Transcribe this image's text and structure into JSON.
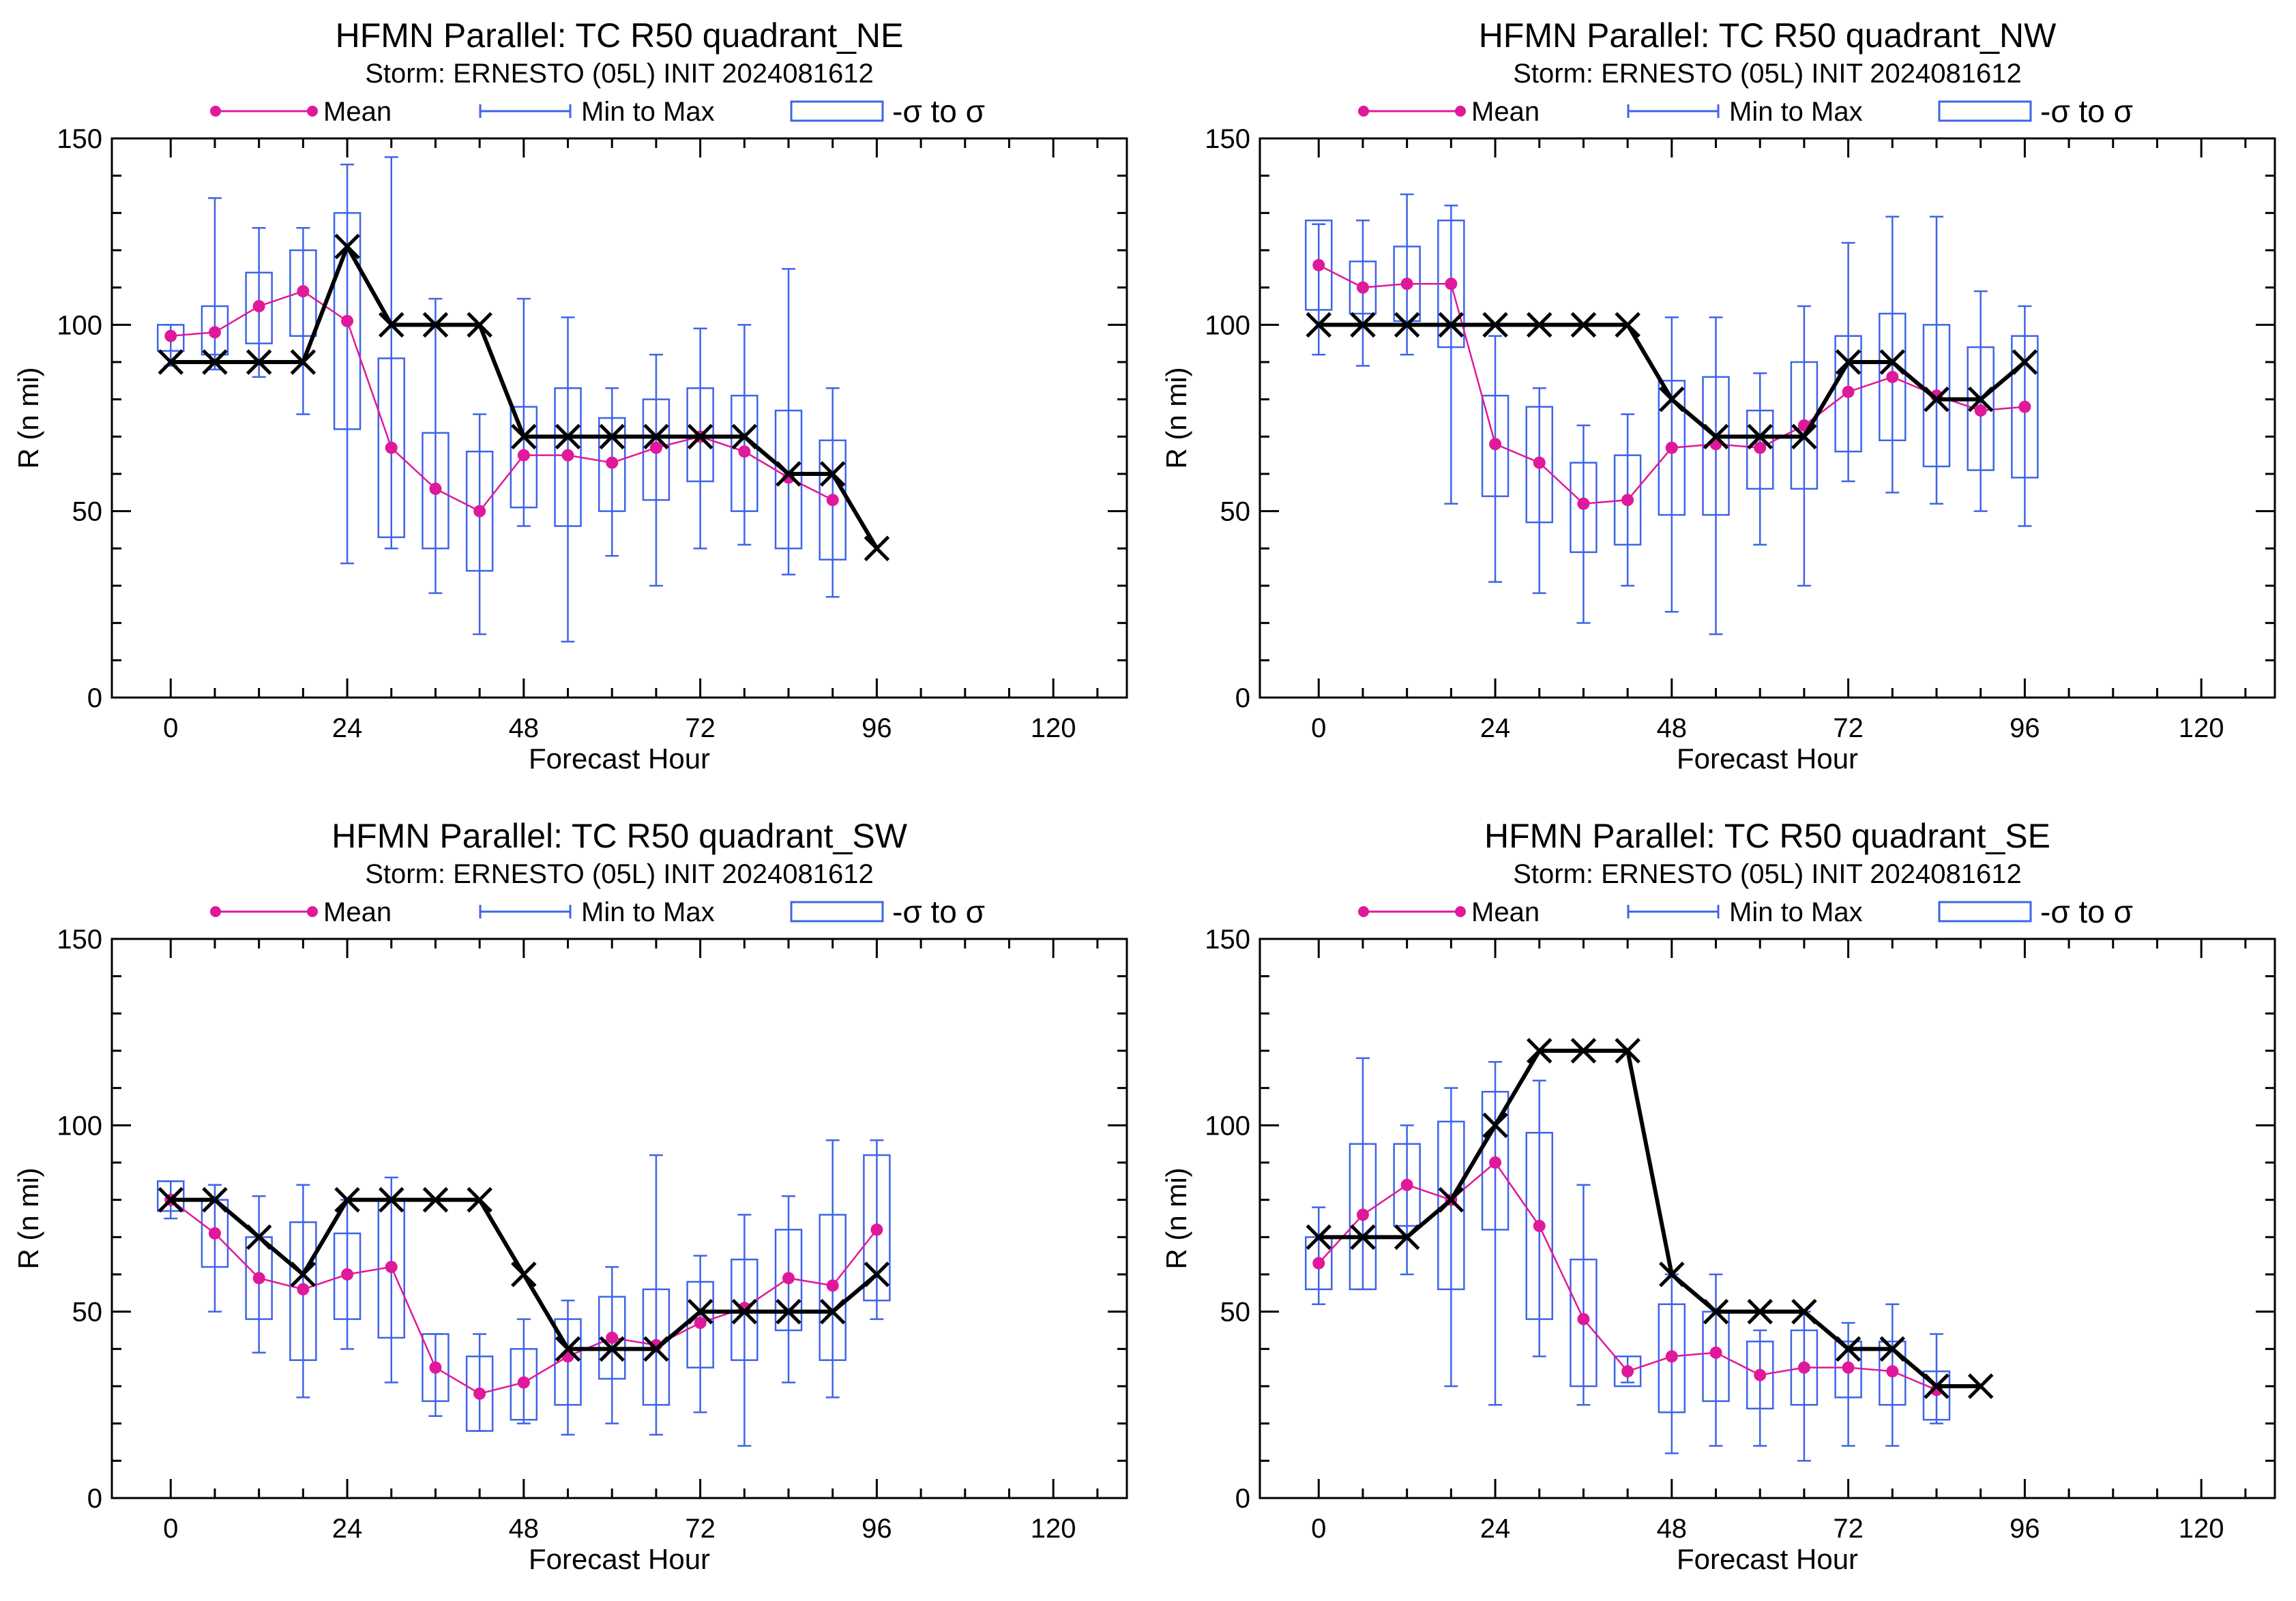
{
  "legend": {
    "mean": "Mean",
    "minmax": "Min to Max",
    "sigma": "-σ to σ"
  },
  "colors": {
    "mean": "#e0189a",
    "box": "#3e64e8",
    "obs": "#000000"
  },
  "chart_data": [
    {
      "type": "box",
      "title": "HFMN Parallel: TC  R50 quadrant_NE",
      "subtitle": "Storm: ERNESTO (05L) INIT 2024081612",
      "xlabel": "Forecast Hour",
      "ylabel": "R (n mi)",
      "xlim": [
        -8,
        130
      ],
      "ylim": [
        0,
        150
      ],
      "xticks": [
        0,
        24,
        48,
        72,
        96,
        120
      ],
      "yticks": [
        0,
        50,
        100,
        150
      ],
      "series": [
        {
          "name": "Mean",
          "x": [
            0,
            6,
            12,
            18,
            24,
            30,
            36,
            42,
            48,
            54,
            60,
            66,
            72,
            78,
            84,
            90
          ],
          "values": [
            97,
            98,
            105,
            109,
            101,
            67,
            56,
            50,
            65,
            65,
            63,
            67,
            70,
            66,
            59,
            53
          ]
        },
        {
          "name": "Min to Max",
          "x": [
            0,
            6,
            12,
            18,
            24,
            30,
            36,
            42,
            48,
            54,
            60,
            66,
            72,
            78,
            84,
            90
          ],
          "min": [
            89,
            88,
            86,
            76,
            36,
            40,
            28,
            17,
            46,
            15,
            38,
            30,
            40,
            41,
            33,
            27
          ],
          "max": [
            100,
            134,
            126,
            126,
            143,
            145,
            107,
            76,
            107,
            102,
            83,
            92,
            99,
            100,
            115,
            83
          ]
        },
        {
          "name": "-σ to σ",
          "x": [
            0,
            6,
            12,
            18,
            24,
            30,
            36,
            42,
            48,
            54,
            60,
            66,
            72,
            78,
            84,
            90
          ],
          "low": [
            93,
            92,
            95,
            97,
            72,
            43,
            40,
            34,
            51,
            46,
            50,
            53,
            58,
            50,
            40,
            37
          ],
          "high": [
            100,
            105,
            114,
            120,
            130,
            91,
            71,
            66,
            78,
            83,
            75,
            80,
            83,
            81,
            77,
            69
          ]
        },
        {
          "name": "",
          "x": [
            0,
            6,
            12,
            18,
            24,
            30,
            36,
            42,
            48,
            54,
            60,
            66,
            72,
            78,
            84,
            90,
            96
          ],
          "values": [
            90,
            90,
            90,
            90,
            121,
            100,
            100,
            100,
            70,
            70,
            70,
            70,
            70,
            70,
            60,
            60,
            40
          ]
        }
      ]
    },
    {
      "type": "box",
      "title": "HFMN Parallel: TC  R50 quadrant_NW",
      "subtitle": "Storm: ERNESTO (05L) INIT 2024081612",
      "xlabel": "Forecast Hour",
      "ylabel": "R (n mi)",
      "xlim": [
        -8,
        130
      ],
      "ylim": [
        0,
        150
      ],
      "xticks": [
        0,
        24,
        48,
        72,
        96,
        120
      ],
      "yticks": [
        0,
        50,
        100,
        150
      ],
      "series": [
        {
          "name": "Mean",
          "x": [
            0,
            6,
            12,
            18,
            24,
            30,
            36,
            42,
            48,
            54,
            60,
            66,
            72,
            78,
            84,
            90,
            96
          ],
          "values": [
            116,
            110,
            111,
            111,
            68,
            63,
            52,
            53,
            67,
            68,
            67,
            73,
            82,
            86,
            81,
            77,
            78
          ]
        },
        {
          "name": "Min to Max",
          "x": [
            0,
            6,
            12,
            18,
            24,
            30,
            36,
            42,
            48,
            54,
            60,
            66,
            72,
            78,
            84,
            90,
            96
          ],
          "min": [
            92,
            89,
            92,
            52,
            31,
            28,
            20,
            30,
            23,
            17,
            41,
            30,
            58,
            55,
            52,
            50,
            46
          ],
          "max": [
            127,
            128,
            135,
            132,
            97,
            83,
            73,
            76,
            102,
            102,
            87,
            105,
            122,
            129,
            129,
            109,
            105
          ]
        },
        {
          "name": "-σ to σ",
          "x": [
            0,
            6,
            12,
            18,
            24,
            30,
            36,
            42,
            48,
            54,
            60,
            66,
            72,
            78,
            84,
            90,
            96
          ],
          "low": [
            104,
            103,
            101,
            94,
            54,
            47,
            39,
            41,
            49,
            49,
            56,
            56,
            66,
            69,
            62,
            61,
            59
          ],
          "high": [
            128,
            117,
            121,
            128,
            81,
            78,
            63,
            65,
            85,
            86,
            77,
            90,
            97,
            103,
            100,
            94,
            97
          ]
        },
        {
          "name": "",
          "x": [
            0,
            6,
            12,
            18,
            24,
            30,
            36,
            42,
            48,
            54,
            60,
            66,
            72,
            78,
            84,
            90,
            96
          ],
          "values": [
            100,
            100,
            100,
            100,
            100,
            100,
            100,
            100,
            80,
            70,
            70,
            70,
            90,
            90,
            80,
            80,
            90
          ]
        }
      ]
    },
    {
      "type": "box",
      "title": "HFMN Parallel: TC  R50 quadrant_SW",
      "subtitle": "Storm: ERNESTO (05L) INIT 2024081612",
      "xlabel": "Forecast Hour",
      "ylabel": "R (n mi)",
      "xlim": [
        -8,
        130
      ],
      "ylim": [
        0,
        150
      ],
      "xticks": [
        0,
        24,
        48,
        72,
        96,
        120
      ],
      "yticks": [
        0,
        50,
        100,
        150
      ],
      "series": [
        {
          "name": "Mean",
          "x": [
            0,
            6,
            12,
            18,
            24,
            30,
            36,
            42,
            48,
            54,
            60,
            66,
            72,
            78,
            84,
            90,
            96
          ],
          "values": [
            80,
            71,
            59,
            56,
            60,
            62,
            35,
            28,
            31,
            38,
            43,
            41,
            47,
            51,
            59,
            57,
            72
          ]
        },
        {
          "name": "Min to Max",
          "x": [
            0,
            6,
            12,
            18,
            24,
            30,
            36,
            42,
            48,
            54,
            60,
            66,
            72,
            78,
            84,
            90,
            96
          ],
          "min": [
            75,
            50,
            39,
            27,
            40,
            31,
            22,
            18,
            20,
            17,
            20,
            17,
            23,
            14,
            31,
            27,
            48
          ],
          "max": [
            85,
            84,
            81,
            84,
            80,
            86,
            44,
            44,
            48,
            53,
            62,
            92,
            65,
            76,
            81,
            96,
            96
          ]
        },
        {
          "name": "-σ to σ",
          "x": [
            0,
            6,
            12,
            18,
            24,
            30,
            36,
            42,
            48,
            54,
            60,
            66,
            72,
            78,
            84,
            90,
            96
          ],
          "low": [
            77,
            62,
            48,
            37,
            48,
            43,
            26,
            18,
            21,
            25,
            32,
            25,
            35,
            37,
            45,
            37,
            53
          ],
          "high": [
            85,
            80,
            70,
            74,
            71,
            80,
            44,
            38,
            40,
            48,
            54,
            56,
            58,
            64,
            72,
            76,
            92
          ]
        },
        {
          "name": "",
          "x": [
            0,
            6,
            12,
            18,
            24,
            30,
            36,
            42,
            48,
            54,
            60,
            66,
            72,
            78,
            84,
            90,
            96
          ],
          "values": [
            80,
            80,
            70,
            60,
            80,
            80,
            80,
            80,
            60,
            40,
            40,
            40,
            50,
            50,
            50,
            50,
            60
          ]
        }
      ]
    },
    {
      "type": "box",
      "title": "HFMN Parallel: TC  R50 quadrant_SE",
      "subtitle": "Storm: ERNESTO (05L) INIT 2024081612",
      "xlabel": "Forecast Hour",
      "ylabel": "R (n mi)",
      "xlim": [
        -8,
        130
      ],
      "ylim": [
        0,
        150
      ],
      "xticks": [
        0,
        24,
        48,
        72,
        96,
        120
      ],
      "yticks": [
        0,
        50,
        100,
        150
      ],
      "series": [
        {
          "name": "Mean",
          "x": [
            0,
            6,
            12,
            18,
            24,
            30,
            36,
            42,
            48,
            54,
            60,
            66,
            72,
            78,
            84
          ],
          "values": [
            63,
            76,
            84,
            80,
            90,
            73,
            48,
            34,
            38,
            39,
            33,
            35,
            35,
            34,
            29
          ]
        },
        {
          "name": "Min to Max",
          "x": [
            0,
            6,
            12,
            18,
            24,
            30,
            36,
            42,
            48,
            54,
            60,
            66,
            72,
            78,
            84
          ],
          "min": [
            52,
            56,
            60,
            30,
            25,
            38,
            25,
            31,
            12,
            14,
            14,
            10,
            14,
            14,
            20
          ],
          "max": [
            78,
            118,
            100,
            110,
            117,
            112,
            84,
            38,
            60,
            60,
            45,
            50,
            47,
            52,
            44
          ]
        },
        {
          "name": "-σ to σ",
          "x": [
            0,
            6,
            12,
            18,
            24,
            30,
            36,
            42,
            48,
            54,
            60,
            66,
            72,
            78,
            84
          ],
          "low": [
            56,
            56,
            73,
            56,
            72,
            48,
            30,
            30,
            23,
            26,
            24,
            25,
            27,
            25,
            21
          ],
          "high": [
            70,
            95,
            95,
            101,
            109,
            98,
            64,
            38,
            52,
            50,
            42,
            45,
            42,
            42,
            34
          ]
        },
        {
          "name": "",
          "x": [
            0,
            6,
            12,
            18,
            24,
            30,
            36,
            42,
            48,
            54,
            60,
            66,
            72,
            78,
            84,
            90
          ],
          "values": [
            70,
            70,
            70,
            80,
            100,
            120,
            120,
            120,
            60,
            50,
            50,
            50,
            40,
            40,
            30,
            30
          ]
        }
      ]
    }
  ]
}
